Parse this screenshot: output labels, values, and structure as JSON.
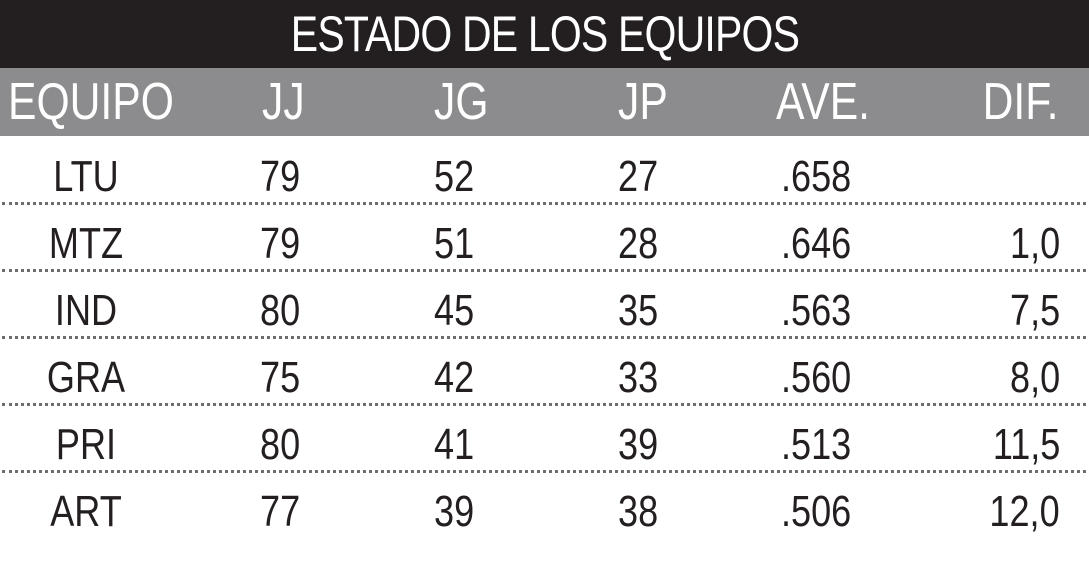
{
  "chart_data": {
    "type": "table",
    "title": "ESTADO DE LOS EQUIPOS",
    "columns": [
      "EQUIPO",
      "JJ",
      "JG",
      "JP",
      "AVE.",
      "DIF."
    ],
    "rows": [
      [
        "LTU",
        "79",
        "52",
        "27",
        ".658",
        ""
      ],
      [
        "MTZ",
        "79",
        "51",
        "28",
        ".646",
        "1,0"
      ],
      [
        "IND",
        "80",
        "45",
        "35",
        ".563",
        "7,5"
      ],
      [
        "GRA",
        "75",
        "42",
        "33",
        ".560",
        "8,0"
      ],
      [
        "PRI",
        "80",
        "41",
        "39",
        ".513",
        "11,5"
      ],
      [
        "ART",
        "77",
        "39",
        "38",
        ".506",
        "12,0"
      ]
    ]
  },
  "colors": {
    "title_background": "#231f20",
    "header_background": "#8c8c8e",
    "text": "#231f20",
    "divider": "#6d6d6d"
  }
}
